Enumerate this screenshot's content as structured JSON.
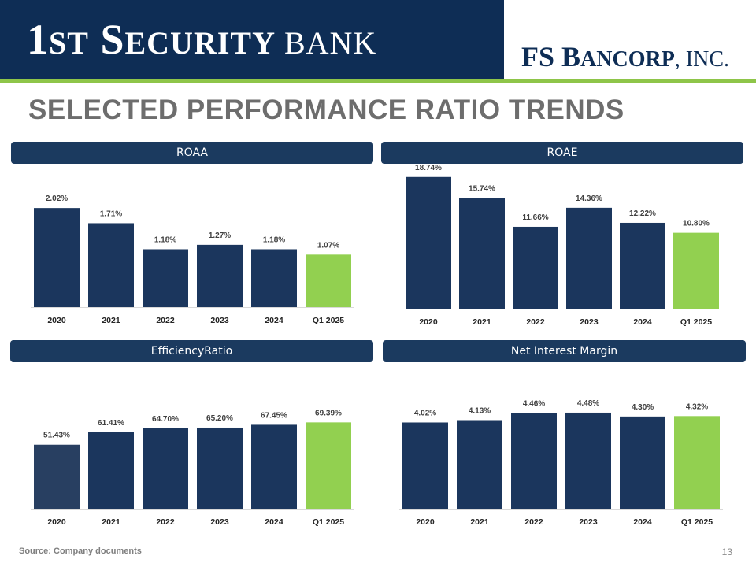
{
  "header": {
    "bank_logo": {
      "part1": "1",
      "part2": "ST",
      "part3": " S",
      "part4": "ECURITY",
      "part5": " BANK"
    },
    "parent_logo": {
      "part1": "FS B",
      "part2": "ANCORP",
      "part3": ", INC."
    },
    "colors": {
      "navy": "#0e2d55",
      "green_rule": "#8ec549"
    }
  },
  "page_title": "SELECTED PERFORMANCE RATIO TRENDS",
  "panels": {
    "roaa": {
      "title": "ROAA"
    },
    "roae": {
      "title": "ROAE"
    },
    "efficiency": {
      "title": "EfficiencyRatio"
    },
    "nim": {
      "title": "Net Interest Margin"
    }
  },
  "chart_data": [
    {
      "id": "roaa",
      "type": "bar",
      "title": "ROAA",
      "categories": [
        "2020",
        "2021",
        "2022",
        "2023",
        "2024",
        "Q1 2025"
      ],
      "values": [
        2.02,
        1.71,
        1.18,
        1.27,
        1.18,
        1.07
      ],
      "labels": [
        "2.02%",
        "1.71%",
        "1.18%",
        "1.27%",
        "1.18%",
        "1.07%"
      ],
      "ylim": [
        0,
        2.6
      ],
      "colors": [
        "#1b365d",
        "#1b365d",
        "#1b365d",
        "#1b365d",
        "#1b365d",
        "#92d050"
      ]
    },
    {
      "id": "roae",
      "type": "bar",
      "title": "ROAE",
      "categories": [
        "2020",
        "2021",
        "2022",
        "2023",
        "2024",
        "Q1 2025"
      ],
      "values": [
        18.74,
        15.74,
        11.66,
        14.36,
        12.22,
        10.8
      ],
      "labels": [
        "18.74%",
        "15.74%",
        "11.66%",
        "14.36%",
        "12.22%",
        "10.80%"
      ],
      "ylim": [
        0,
        19.5
      ],
      "colors": [
        "#1b365d",
        "#1b365d",
        "#1b365d",
        "#1b365d",
        "#1b365d",
        "#92d050"
      ]
    },
    {
      "id": "efficiency",
      "type": "bar",
      "title": "EfficiencyRatio",
      "categories": [
        "2020",
        "2021",
        "2022",
        "2023",
        "2024",
        "Q1 2025"
      ],
      "values": [
        51.43,
        61.41,
        64.7,
        65.2,
        67.45,
        69.39
      ],
      "labels": [
        "51.43%",
        "61.41%",
        "64.70%",
        "65.20%",
        "67.45%",
        "69.39%"
      ],
      "ylim": [
        0,
        100
      ],
      "colors": [
        "#283f61",
        "#1b365d",
        "#1b365d",
        "#1b365d",
        "#1b365d",
        "#92d050"
      ]
    },
    {
      "id": "nim",
      "type": "bar",
      "title": "Net Interest Margin",
      "categories": [
        "2020",
        "2021",
        "2022",
        "2023",
        "2024",
        "Q1 2025"
      ],
      "values": [
        4.02,
        4.13,
        4.46,
        4.48,
        4.3,
        4.32
      ],
      "labels": [
        "4.02%",
        "4.13%",
        "4.46%",
        "4.48%",
        "4.30%",
        "4.32%"
      ],
      "ylim": [
        0,
        5.8
      ],
      "colors": [
        "#1b365d",
        "#1b365d",
        "#1b365d",
        "#1b365d",
        "#1b365d",
        "#92d050"
      ]
    }
  ],
  "footer": {
    "source_label": "Source: Company documents",
    "page_number": "13"
  }
}
